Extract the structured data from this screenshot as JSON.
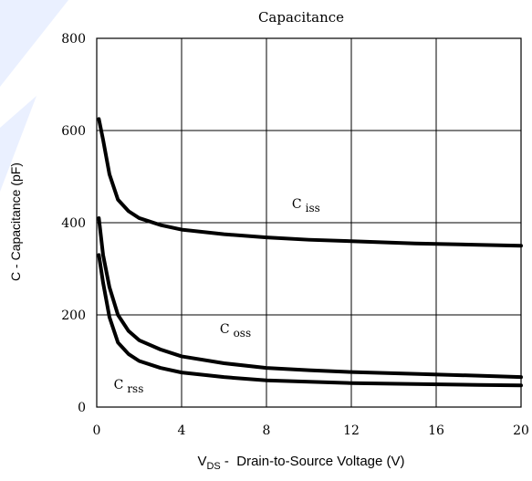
{
  "chart_data": {
    "type": "line",
    "title": "Capacitance",
    "xlabel": {
      "prefix": "V",
      "subscript": "DS",
      "suffix": " -  Drain-to-Source Voltage (V)"
    },
    "ylabel": "C  -  Capacitance (pF)",
    "xlim": [
      0,
      20
    ],
    "ylim": [
      0,
      800
    ],
    "xticks": [
      0,
      4,
      8,
      12,
      16,
      20
    ],
    "yticks": [
      0,
      200,
      400,
      600,
      800
    ],
    "grid": true,
    "series": [
      {
        "name": "C iss",
        "label_base": "C",
        "label_sub": "iss",
        "label_at": [
          9.2,
          432
        ],
        "x": [
          0.1,
          0.3,
          0.6,
          1.0,
          1.5,
          2.0,
          3.0,
          4.0,
          6.0,
          8.0,
          10.0,
          12.0,
          15.0,
          18.0,
          20.0
        ],
        "y": [
          625,
          580,
          505,
          450,
          425,
          410,
          395,
          385,
          375,
          368,
          363,
          360,
          355,
          352,
          350
        ]
      },
      {
        "name": "C oss",
        "label_base": "C",
        "label_sub": "oss",
        "label_at": [
          5.8,
          160
        ],
        "x": [
          0.1,
          0.3,
          0.6,
          1.0,
          1.5,
          2.0,
          3.0,
          4.0,
          6.0,
          8.0,
          10.0,
          12.0,
          15.0,
          18.0,
          20.0
        ],
        "y": [
          410,
          330,
          260,
          200,
          165,
          145,
          125,
          110,
          95,
          85,
          80,
          76,
          72,
          68,
          65
        ]
      },
      {
        "name": "C rss",
        "label_base": "C",
        "label_sub": "rss",
        "label_at": [
          0.8,
          40
        ],
        "x": [
          0.1,
          0.3,
          0.6,
          1.0,
          1.5,
          2.0,
          3.0,
          4.0,
          6.0,
          8.0,
          10.0,
          12.0,
          15.0,
          18.0,
          20.0
        ],
        "y": [
          330,
          270,
          195,
          140,
          115,
          100,
          85,
          75,
          65,
          58,
          55,
          52,
          50,
          48,
          47
        ]
      }
    ]
  },
  "colors": {
    "line": "#000000",
    "grid": "#000000",
    "watermark": "#eaf0ff"
  }
}
